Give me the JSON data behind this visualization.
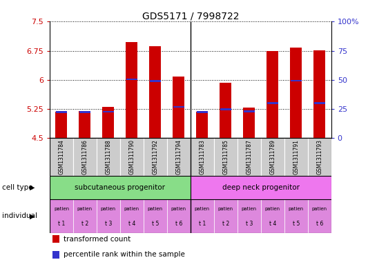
{
  "title": "GDS5171 / 7998722",
  "samples": [
    "GSM1311784",
    "GSM1311786",
    "GSM1311788",
    "GSM1311790",
    "GSM1311792",
    "GSM1311794",
    "GSM1311783",
    "GSM1311785",
    "GSM1311787",
    "GSM1311789",
    "GSM1311791",
    "GSM1311793"
  ],
  "transformed_count": [
    5.18,
    5.2,
    5.3,
    6.97,
    6.87,
    6.08,
    5.19,
    5.92,
    5.28,
    6.75,
    6.84,
    6.76
  ],
  "percentile_rank": [
    5.17,
    5.17,
    5.18,
    6.02,
    5.97,
    5.31,
    5.17,
    5.24,
    5.19,
    5.4,
    5.98,
    5.4
  ],
  "bar_bottom": 4.5,
  "ylim_left": [
    4.5,
    7.5
  ],
  "yticks_left": [
    4.5,
    5.25,
    6.0,
    6.75,
    7.5
  ],
  "ytick_labels_left": [
    "4.5",
    "5.25",
    "6",
    "6.75",
    "7.5"
  ],
  "ylim_right": [
    0,
    100
  ],
  "yticks_right": [
    0,
    25,
    50,
    75,
    100
  ],
  "ytick_labels_right": [
    "0",
    "25",
    "50",
    "75",
    "100%"
  ],
  "bar_color": "#cc0000",
  "blue_color": "#3333cc",
  "cell_types": [
    "subcutaneous progenitor",
    "deep neck progenitor"
  ],
  "individuals": [
    "t 1",
    "t 2",
    "t 3",
    "t 4",
    "t 5",
    "t 6",
    "t 1",
    "t 2",
    "t 3",
    "t 4",
    "t 5",
    "t 6"
  ],
  "cell_type_green": "#88dd88",
  "cell_type_pink": "#ee77ee",
  "ind_pink": "#dd88dd",
  "sample_gray": "#cccccc",
  "grid_color": "#000000",
  "tick_color_left": "#cc0000",
  "tick_color_right": "#3333cc",
  "title_fontsize": 10,
  "bar_width": 0.5,
  "blue_bar_height": 0.045
}
